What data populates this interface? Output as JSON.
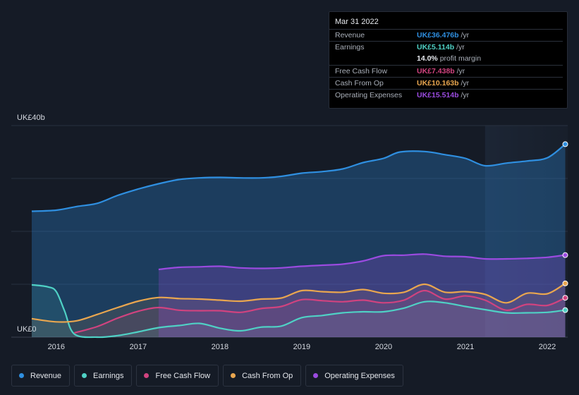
{
  "chart_data": {
    "type": "area",
    "y_unit": "UK£",
    "ylim": [
      0,
      40
    ],
    "y_axis_labels": [
      "UK£40b",
      "UK£0"
    ],
    "x_tick_labels": [
      "2016",
      "2017",
      "2018",
      "2019",
      "2020",
      "2021",
      "2022"
    ],
    "x_ticks": [
      2016,
      2017,
      2018,
      2019,
      2020,
      2021,
      2022
    ],
    "xlim": [
      2015.45,
      2022.25
    ],
    "forecast_start": 2021.24,
    "series": [
      {
        "name": "Revenue",
        "color": "#2f8fe0",
        "points": [
          [
            2015.7,
            23.8
          ],
          [
            2016.0,
            24.0
          ],
          [
            2016.25,
            24.7
          ],
          [
            2016.5,
            25.3
          ],
          [
            2016.75,
            26.8
          ],
          [
            2017.0,
            28.0
          ],
          [
            2017.25,
            29.0
          ],
          [
            2017.5,
            29.8
          ],
          [
            2017.75,
            30.1
          ],
          [
            2018.0,
            30.2
          ],
          [
            2018.25,
            30.1
          ],
          [
            2018.5,
            30.1
          ],
          [
            2018.75,
            30.4
          ],
          [
            2019.0,
            31.0
          ],
          [
            2019.25,
            31.3
          ],
          [
            2019.5,
            31.8
          ],
          [
            2019.75,
            33.0
          ],
          [
            2020.0,
            33.8
          ],
          [
            2020.2,
            35.0
          ],
          [
            2020.5,
            35.1
          ],
          [
            2020.75,
            34.5
          ],
          [
            2021.0,
            33.8
          ],
          [
            2021.24,
            32.4
          ],
          [
            2021.5,
            32.9
          ],
          [
            2021.75,
            33.3
          ],
          [
            2022.0,
            33.9
          ],
          [
            2022.22,
            36.476
          ]
        ]
      },
      {
        "name": "Earnings",
        "color": "#4fd1c5",
        "points": [
          [
            2015.7,
            9.9
          ],
          [
            2015.9,
            9.5
          ],
          [
            2016.0,
            8.6
          ],
          [
            2016.1,
            5.0
          ],
          [
            2016.22,
            0.6
          ],
          [
            2016.5,
            0.0
          ],
          [
            2016.75,
            0.3
          ],
          [
            2017.0,
            1.0
          ],
          [
            2017.25,
            1.8
          ],
          [
            2017.5,
            2.2
          ],
          [
            2017.75,
            2.6
          ],
          [
            2018.0,
            1.7
          ],
          [
            2018.25,
            1.2
          ],
          [
            2018.5,
            1.9
          ],
          [
            2018.75,
            2.1
          ],
          [
            2019.0,
            3.7
          ],
          [
            2019.25,
            4.1
          ],
          [
            2019.5,
            4.6
          ],
          [
            2019.75,
            4.8
          ],
          [
            2020.0,
            4.8
          ],
          [
            2020.25,
            5.5
          ],
          [
            2020.5,
            6.7
          ],
          [
            2020.75,
            6.5
          ],
          [
            2021.0,
            5.8
          ],
          [
            2021.24,
            5.2
          ],
          [
            2021.5,
            4.6
          ],
          [
            2021.75,
            4.6
          ],
          [
            2022.0,
            4.7
          ],
          [
            2022.22,
            5.114
          ]
        ]
      },
      {
        "name": "Free Cash Flow",
        "color": "#d1437f",
        "points": [
          [
            2016.22,
            0.8
          ],
          [
            2016.5,
            2.0
          ],
          [
            2016.75,
            3.6
          ],
          [
            2017.0,
            4.9
          ],
          [
            2017.25,
            5.6
          ],
          [
            2017.5,
            5.1
          ],
          [
            2017.75,
            5.0
          ],
          [
            2018.0,
            5.0
          ],
          [
            2018.25,
            4.7
          ],
          [
            2018.5,
            5.4
          ],
          [
            2018.75,
            5.8
          ],
          [
            2019.0,
            7.1
          ],
          [
            2019.25,
            6.9
          ],
          [
            2019.5,
            6.7
          ],
          [
            2019.75,
            7.0
          ],
          [
            2020.0,
            6.5
          ],
          [
            2020.25,
            7.0
          ],
          [
            2020.5,
            8.8
          ],
          [
            2020.75,
            7.2
          ],
          [
            2021.0,
            7.8
          ],
          [
            2021.24,
            7.0
          ],
          [
            2021.5,
            5.1
          ],
          [
            2021.75,
            6.2
          ],
          [
            2022.0,
            6.0
          ],
          [
            2022.22,
            7.438
          ]
        ]
      },
      {
        "name": "Cash From Op",
        "color": "#e9a64f",
        "points": [
          [
            2015.7,
            3.5
          ],
          [
            2016.0,
            2.9
          ],
          [
            2016.25,
            3.1
          ],
          [
            2016.5,
            4.3
          ],
          [
            2016.75,
            5.6
          ],
          [
            2017.0,
            6.8
          ],
          [
            2017.25,
            7.5
          ],
          [
            2017.5,
            7.3
          ],
          [
            2017.75,
            7.2
          ],
          [
            2018.0,
            7.0
          ],
          [
            2018.25,
            6.8
          ],
          [
            2018.5,
            7.2
          ],
          [
            2018.75,
            7.4
          ],
          [
            2019.0,
            8.8
          ],
          [
            2019.25,
            8.6
          ],
          [
            2019.5,
            8.5
          ],
          [
            2019.75,
            9.0
          ],
          [
            2020.0,
            8.3
          ],
          [
            2020.25,
            8.5
          ],
          [
            2020.5,
            10.0
          ],
          [
            2020.75,
            8.5
          ],
          [
            2021.0,
            8.6
          ],
          [
            2021.24,
            8.1
          ],
          [
            2021.5,
            6.5
          ],
          [
            2021.75,
            8.3
          ],
          [
            2022.0,
            8.2
          ],
          [
            2022.22,
            10.163
          ]
        ]
      },
      {
        "name": "Operating Expenses",
        "color": "#9b4be0",
        "points": [
          [
            2017.25,
            12.8
          ],
          [
            2017.5,
            13.2
          ],
          [
            2017.75,
            13.3
          ],
          [
            2018.0,
            13.4
          ],
          [
            2018.25,
            13.1
          ],
          [
            2018.5,
            13.0
          ],
          [
            2018.75,
            13.1
          ],
          [
            2019.0,
            13.4
          ],
          [
            2019.25,
            13.6
          ],
          [
            2019.5,
            13.8
          ],
          [
            2019.75,
            14.4
          ],
          [
            2020.0,
            15.4
          ],
          [
            2020.25,
            15.5
          ],
          [
            2020.5,
            15.7
          ],
          [
            2020.75,
            15.3
          ],
          [
            2021.0,
            15.2
          ],
          [
            2021.24,
            14.8
          ],
          [
            2021.5,
            14.8
          ],
          [
            2021.75,
            14.9
          ],
          [
            2022.0,
            15.1
          ],
          [
            2022.22,
            15.514
          ]
        ]
      }
    ]
  },
  "tooltip": {
    "date": "Mar 31 2022",
    "rows": [
      {
        "label": "Revenue",
        "value": "UK£36.476b",
        "unit": " /yr",
        "color": "#2f8fe0"
      },
      {
        "label": "Earnings",
        "value": "UK£5.114b",
        "unit": " /yr",
        "color": "#4fd1c5"
      },
      {
        "label": "",
        "value": "14.0%",
        "unit": " profit margin",
        "color": "#e6e9ee"
      },
      {
        "label": "Free Cash Flow",
        "value": "UK£7.438b",
        "unit": " /yr",
        "color": "#d1437f"
      },
      {
        "label": "Cash From Op",
        "value": "UK£10.163b",
        "unit": " /yr",
        "color": "#e9a64f"
      },
      {
        "label": "Operating Expenses",
        "value": "UK£15.514b",
        "unit": " /yr",
        "color": "#9b4be0"
      }
    ]
  },
  "legend": [
    {
      "label": "Revenue",
      "color": "#2f8fe0"
    },
    {
      "label": "Earnings",
      "color": "#4fd1c5"
    },
    {
      "label": "Free Cash Flow",
      "color": "#d1437f"
    },
    {
      "label": "Cash From Op",
      "color": "#e9a64f"
    },
    {
      "label": "Operating Expenses",
      "color": "#9b4be0"
    }
  ]
}
